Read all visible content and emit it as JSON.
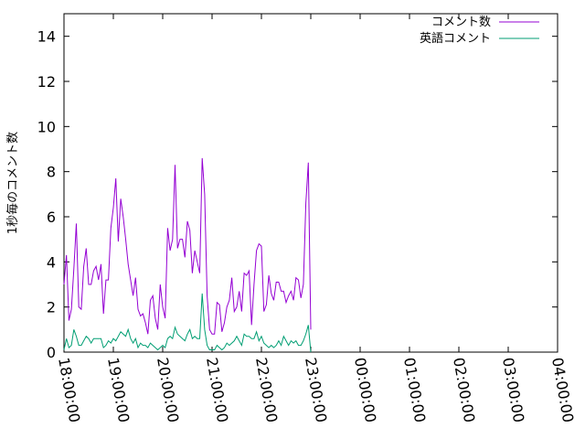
{
  "chart_data": {
    "type": "line",
    "title": "",
    "xlabel": "",
    "ylabel": "1秒毎のコメント数",
    "xlim": [
      "18:00:00",
      "04:00:00"
    ],
    "ylim": [
      0,
      15
    ],
    "x_ticks": [
      "18:00:00",
      "19:00:00",
      "20:00:00",
      "21:00:00",
      "22:00:00",
      "23:00:00",
      "00:00:00",
      "01:00:00",
      "02:00:00",
      "03:00:00",
      "04:00:00"
    ],
    "y_ticks": [
      "0",
      "2",
      "4",
      "6",
      "8",
      "10",
      "12",
      "14"
    ],
    "grid": false,
    "legend_position": "top-right",
    "x_start": "17:57:00",
    "x_step_minutes": 3,
    "series": [
      {
        "name": "コメント数",
        "color": "#9400d3",
        "values": [
          3.0,
          4.3,
          1.4,
          1.9,
          3.7,
          5.7,
          2.0,
          1.9,
          3.8,
          4.6,
          3.0,
          3.0,
          3.6,
          3.8,
          3.2,
          3.9,
          1.7,
          3.2,
          3.2,
          5.5,
          6.4,
          7.7,
          4.9,
          6.8,
          6.0,
          5.0,
          3.9,
          3.2,
          2.5,
          3.3,
          1.9,
          1.6,
          1.7,
          1.3,
          0.8,
          2.3,
          2.5,
          1.5,
          1.0,
          3.0,
          2.0,
          1.5,
          5.5,
          4.5,
          5.0,
          8.3,
          4.6,
          5.0,
          5.0,
          4.2,
          5.8,
          5.4,
          3.5,
          4.5,
          4.0,
          3.5,
          8.6,
          7.0,
          2.5,
          1.0,
          0.8,
          0.8,
          2.2,
          2.1,
          0.9,
          1.3,
          2.0,
          2.3,
          3.3,
          1.8,
          2.0,
          2.7,
          1.8,
          3.5,
          3.4,
          3.6,
          1.2,
          3.0,
          4.5,
          4.8,
          4.7,
          1.8,
          2.1,
          3.4,
          2.6,
          2.3,
          3.1,
          3.1,
          2.7,
          2.7,
          2.2,
          2.5,
          2.7,
          2.3,
          3.3,
          3.2,
          2.4,
          3.0,
          6.6,
          8.4,
          1.0
        ]
      },
      {
        "name": "英語コメント",
        "color": "#009e73",
        "values": [
          0.1,
          0.6,
          0.2,
          0.3,
          1.0,
          0.7,
          0.3,
          0.3,
          0.5,
          0.7,
          0.6,
          0.4,
          0.6,
          0.6,
          0.6,
          0.6,
          0.2,
          0.3,
          0.5,
          0.4,
          0.6,
          0.5,
          0.7,
          0.9,
          0.8,
          0.7,
          1.0,
          0.6,
          0.4,
          0.6,
          0.2,
          0.4,
          0.3,
          0.3,
          0.2,
          0.4,
          0.3,
          0.2,
          0.1,
          0.2,
          0.3,
          0.2,
          0.6,
          0.7,
          0.6,
          1.1,
          0.8,
          0.7,
          0.6,
          0.5,
          0.8,
          1.0,
          0.6,
          0.7,
          0.6,
          0.6,
          2.6,
          1.0,
          0.3,
          0.1,
          0.1,
          0.1,
          0.3,
          0.2,
          0.1,
          0.2,
          0.4,
          0.3,
          0.4,
          0.5,
          0.7,
          0.5,
          0.3,
          0.8,
          0.7,
          0.7,
          0.6,
          0.6,
          0.9,
          0.5,
          0.7,
          0.4,
          0.3,
          0.2,
          0.3,
          0.2,
          0.3,
          0.5,
          0.3,
          0.7,
          0.5,
          0.3,
          0.5,
          0.4,
          0.5,
          0.3,
          0.3,
          0.5,
          0.8,
          1.2,
          0.0
        ]
      }
    ]
  }
}
